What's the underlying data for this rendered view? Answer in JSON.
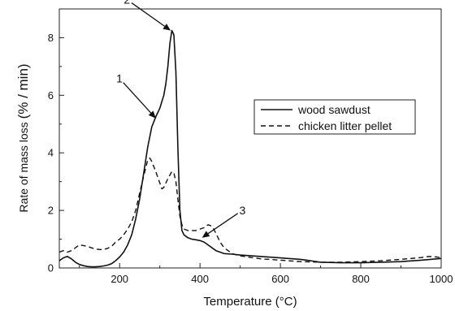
{
  "chart_data": {
    "type": "line",
    "xlabel": "Temperature (°C)",
    "ylabel_main": "Rate of mass loss ",
    "ylabel_unit": "(% / min)",
    "xlim": [
      50,
      1000
    ],
    "ylim": [
      0,
      9
    ],
    "x_ticks": [
      200,
      400,
      600,
      800,
      1000
    ],
    "y_ticks": [
      0,
      2,
      4,
      6,
      8
    ],
    "legend_position": "right",
    "series": [
      {
        "name": "wood sawdust",
        "style": "solid",
        "x": [
          50,
          60,
          70,
          80,
          90,
          100,
          110,
          120,
          130,
          140,
          150,
          160,
          170,
          180,
          190,
          200,
          210,
          220,
          230,
          240,
          250,
          260,
          270,
          280,
          290,
          300,
          310,
          315,
          320,
          325,
          330,
          335,
          340,
          345,
          350,
          355,
          360,
          370,
          380,
          390,
          400,
          410,
          420,
          430,
          440,
          450,
          460,
          480,
          500,
          550,
          600,
          650,
          660,
          680,
          700,
          750,
          800,
          850,
          900,
          950,
          1000
        ],
        "y": [
          0.25,
          0.35,
          0.4,
          0.32,
          0.2,
          0.12,
          0.08,
          0.05,
          0.04,
          0.04,
          0.05,
          0.07,
          0.1,
          0.15,
          0.25,
          0.38,
          0.55,
          0.8,
          1.15,
          1.7,
          2.4,
          3.3,
          4.2,
          4.9,
          5.25,
          5.55,
          6.0,
          6.4,
          7.0,
          7.8,
          8.25,
          8.1,
          6.8,
          4.2,
          2.0,
          1.3,
          1.15,
          1.05,
          1.0,
          0.98,
          0.95,
          0.9,
          0.8,
          0.7,
          0.6,
          0.55,
          0.5,
          0.48,
          0.45,
          0.4,
          0.35,
          0.3,
          0.28,
          0.24,
          0.2,
          0.18,
          0.18,
          0.2,
          0.22,
          0.27,
          0.33
        ]
      },
      {
        "name": "chicken litter pellet",
        "style": "dashed",
        "x": [
          50,
          60,
          70,
          80,
          90,
          100,
          110,
          120,
          130,
          140,
          150,
          160,
          170,
          180,
          190,
          200,
          210,
          220,
          230,
          240,
          250,
          260,
          270,
          275,
          280,
          290,
          300,
          305,
          310,
          320,
          330,
          335,
          340,
          345,
          350,
          355,
          360,
          370,
          380,
          390,
          400,
          410,
          420,
          430,
          440,
          450,
          460,
          470,
          480,
          500,
          550,
          600,
          650,
          700,
          750,
          800,
          850,
          900,
          950,
          970,
          990,
          1000
        ],
        "y": [
          0.55,
          0.6,
          0.55,
          0.6,
          0.7,
          0.8,
          0.78,
          0.75,
          0.7,
          0.66,
          0.64,
          0.64,
          0.68,
          0.75,
          0.9,
          1.0,
          1.15,
          1.35,
          1.6,
          2.0,
          2.6,
          3.2,
          3.75,
          3.82,
          3.7,
          3.35,
          2.95,
          2.75,
          2.8,
          3.1,
          3.35,
          3.3,
          3.0,
          2.4,
          1.8,
          1.5,
          1.35,
          1.3,
          1.3,
          1.3,
          1.35,
          1.4,
          1.5,
          1.45,
          1.2,
          0.9,
          0.7,
          0.6,
          0.5,
          0.42,
          0.32,
          0.27,
          0.22,
          0.2,
          0.2,
          0.22,
          0.25,
          0.3,
          0.36,
          0.4,
          0.38,
          0.35
        ]
      }
    ],
    "annotations": [
      {
        "label": "1",
        "x": 290,
        "y": 5.2
      },
      {
        "label": "2",
        "x": 327,
        "y": 8.25
      },
      {
        "label": "3",
        "x": 405,
        "y": 1.05
      }
    ]
  }
}
